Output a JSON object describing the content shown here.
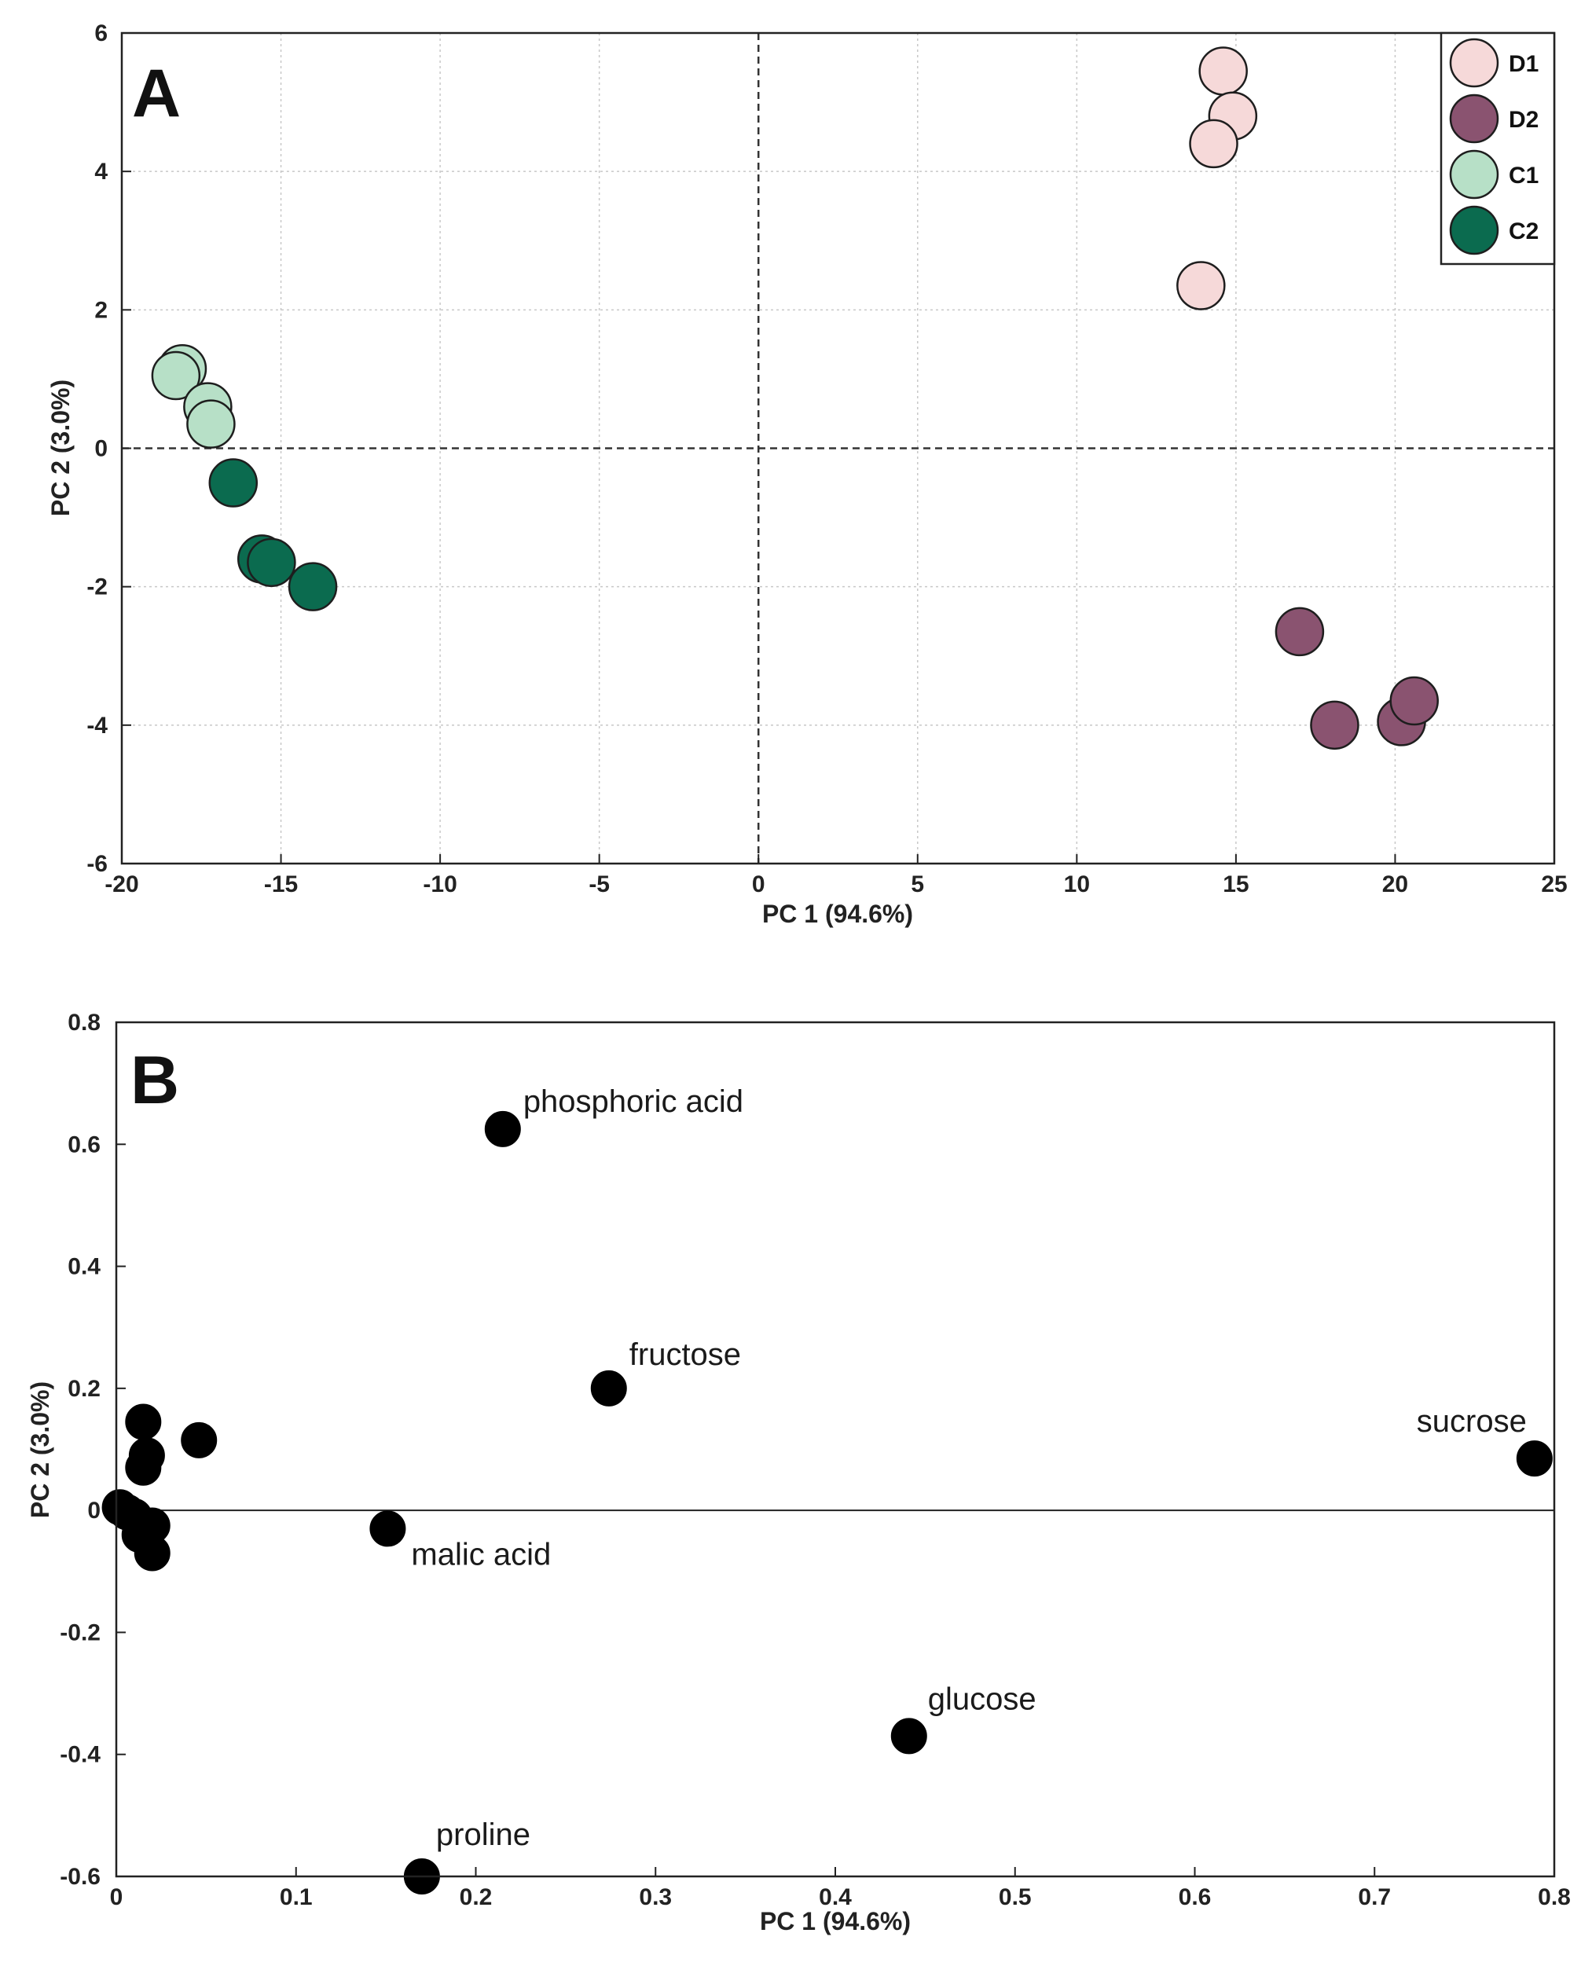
{
  "chart_data": [
    {
      "type": "scatter",
      "panel": "A",
      "title": "",
      "xlabel": "PC 1 (94.6%)",
      "ylabel": "PC 2 (3.0%)",
      "xlim": [
        -20,
        25
      ],
      "ylim": [
        -6,
        6
      ],
      "xticks": [
        -20,
        -15,
        -10,
        -5,
        0,
        5,
        10,
        15,
        20,
        25
      ],
      "yticks": [
        -6,
        -4,
        -2,
        0,
        2,
        4,
        6
      ],
      "grid": true,
      "legend_position": "top-right",
      "series": [
        {
          "name": "D1",
          "color": "#f6d9d9",
          "points": [
            [
              14.6,
              5.45
            ],
            [
              14.9,
              4.8
            ],
            [
              14.3,
              4.4
            ],
            [
              13.9,
              2.35
            ]
          ]
        },
        {
          "name": "D2",
          "color": "#8a5370",
          "points": [
            [
              17.0,
              -2.65
            ],
            [
              18.1,
              -4.0
            ],
            [
              20.2,
              -3.95
            ],
            [
              20.6,
              -3.65
            ]
          ]
        },
        {
          "name": "C1",
          "color": "#b7e0c7",
          "points": [
            [
              -18.1,
              1.15
            ],
            [
              -18.3,
              1.05
            ],
            [
              -17.3,
              0.6
            ],
            [
              -17.2,
              0.35
            ]
          ]
        },
        {
          "name": "C2",
          "color": "#0b6b4f",
          "points": [
            [
              -16.5,
              -0.5
            ],
            [
              -15.6,
              -1.6
            ],
            [
              -15.3,
              -1.65
            ],
            [
              -14.0,
              -2.0
            ]
          ]
        }
      ]
    },
    {
      "type": "scatter",
      "panel": "B",
      "title": "",
      "xlabel": "PC 1 (94.6%)",
      "ylabel": "PC 2 (3.0%)",
      "xlim": [
        0,
        0.8
      ],
      "ylim": [
        -0.6,
        0.8
      ],
      "xticks": [
        0,
        0.1,
        0.2,
        0.3,
        0.4,
        0.5,
        0.6,
        0.7,
        0.8
      ],
      "yticks": [
        -0.6,
        -0.4,
        -0.2,
        0,
        0.2,
        0.4,
        0.6,
        0.8
      ],
      "grid": false,
      "color": "#000000",
      "points": [
        {
          "x": 0.215,
          "y": 0.625,
          "label": "phosphoric acid"
        },
        {
          "x": 0.274,
          "y": 0.2,
          "label": "fructose"
        },
        {
          "x": 0.789,
          "y": 0.085,
          "label": "sucrose"
        },
        {
          "x": 0.151,
          "y": -0.03,
          "label": "malic acid"
        },
        {
          "x": 0.441,
          "y": -0.37,
          "label": "glucose"
        },
        {
          "x": 0.17,
          "y": -0.6,
          "label": "proline"
        },
        {
          "x": 0.015,
          "y": 0.145,
          "label": ""
        },
        {
          "x": 0.017,
          "y": 0.09,
          "label": ""
        },
        {
          "x": 0.015,
          "y": 0.07,
          "label": ""
        },
        {
          "x": 0.046,
          "y": 0.115,
          "label": ""
        },
        {
          "x": 0.002,
          "y": 0.005,
          "label": ""
        },
        {
          "x": 0.006,
          "y": -0.003,
          "label": ""
        },
        {
          "x": 0.01,
          "y": -0.01,
          "label": ""
        },
        {
          "x": 0.013,
          "y": -0.04,
          "label": ""
        },
        {
          "x": 0.02,
          "y": -0.025,
          "label": ""
        },
        {
          "x": 0.02,
          "y": -0.07,
          "label": ""
        }
      ]
    }
  ]
}
